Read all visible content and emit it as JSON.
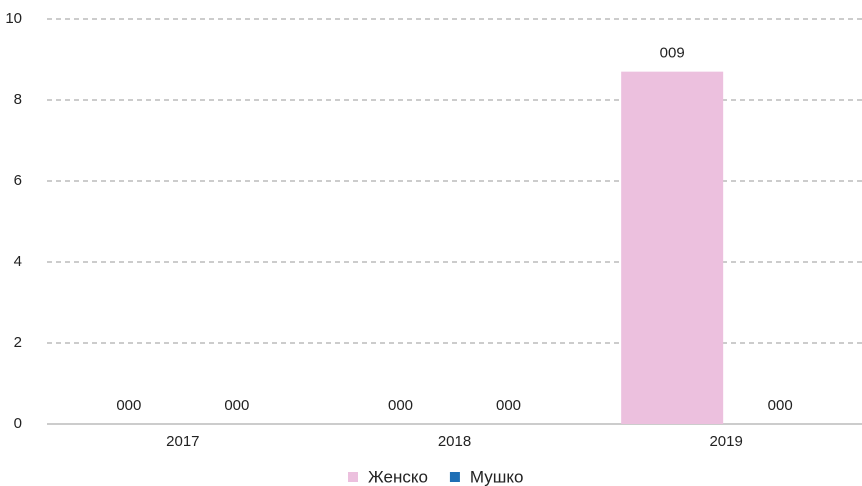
{
  "chart_data": {
    "type": "bar",
    "categories": [
      "2017",
      "2018",
      "2019"
    ],
    "series": [
      {
        "name": "Женско",
        "color": "#ecc0de",
        "values": [
          0,
          0,
          8.7
        ],
        "value_labels": [
          "000",
          "000",
          "009"
        ]
      },
      {
        "name": "Мушко",
        "color": "#1f6fb5",
        "values": [
          0,
          0,
          0
        ],
        "value_labels": [
          "000",
          "000",
          "000"
        ]
      }
    ],
    "ylim": [
      0,
      10
    ],
    "yticks": [
      0,
      2,
      4,
      6,
      8,
      10
    ],
    "grid": true,
    "legend": "bottom"
  }
}
